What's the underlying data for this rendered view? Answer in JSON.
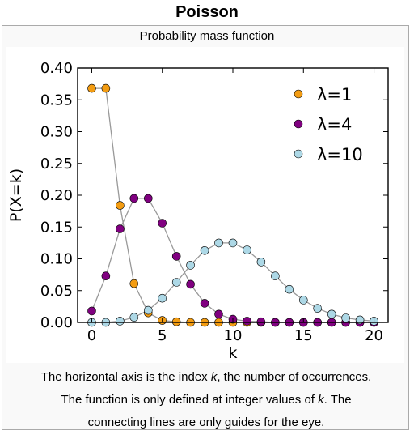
{
  "infobox": {
    "title": "Poisson",
    "subtitle": "Probability mass function",
    "caption": {
      "line1_before": "The horizontal axis is the index ",
      "line1_var": "k",
      "line1_after": ", the number of occurrences.",
      "line2_before": "The function is only defined at integer values of ",
      "line2_var": "k",
      "line2_after": ". The",
      "line3": "connecting lines are only guides for the eye."
    }
  },
  "chart_data": {
    "type": "scatter",
    "xlabel": "k",
    "ylabel": "P(X=k)",
    "xlim": [
      -1,
      21
    ],
    "ylim": [
      0,
      0.4
    ],
    "xticks": [
      0,
      5,
      10,
      15,
      20
    ],
    "yticks": [
      0.0,
      0.05,
      0.1,
      0.15,
      0.2,
      0.25,
      0.3,
      0.35,
      0.4
    ],
    "ytick_labels": [
      "0.00",
      "0.05",
      "0.10",
      "0.15",
      "0.20",
      "0.25",
      "0.30",
      "0.35",
      "0.40"
    ],
    "xtick_labels": [
      "0",
      "5",
      "10",
      "15",
      "20"
    ],
    "grid": false,
    "legend_position": "top-right",
    "connecting_line_color": "#999999",
    "x": [
      0,
      1,
      2,
      3,
      4,
      5,
      6,
      7,
      8,
      9,
      10,
      11,
      12,
      13,
      14,
      15,
      16,
      17,
      18,
      19,
      20
    ],
    "series": [
      {
        "name": "λ=1",
        "color": "#f39c12",
        "values": [
          0.368,
          0.368,
          0.184,
          0.061,
          0.015,
          0.003,
          0.001,
          0.0,
          0.0,
          0.0,
          0.0,
          0.0,
          0.0,
          0.0,
          0.0,
          0.0,
          0.0,
          0.0,
          0.0,
          0.0,
          0.0
        ]
      },
      {
        "name": "λ=4",
        "color": "#800080",
        "values": [
          0.018,
          0.073,
          0.147,
          0.195,
          0.195,
          0.156,
          0.104,
          0.06,
          0.03,
          0.013,
          0.005,
          0.002,
          0.001,
          0.0,
          0.0,
          0.0,
          0.0,
          0.0,
          0.0,
          0.0,
          0.0
        ]
      },
      {
        "name": "λ=10",
        "color": "#add8e6",
        "values": [
          0.0,
          0.0,
          0.002,
          0.008,
          0.019,
          0.038,
          0.063,
          0.09,
          0.113,
          0.125,
          0.125,
          0.114,
          0.095,
          0.073,
          0.052,
          0.035,
          0.022,
          0.013,
          0.007,
          0.004,
          0.002
        ]
      }
    ]
  }
}
